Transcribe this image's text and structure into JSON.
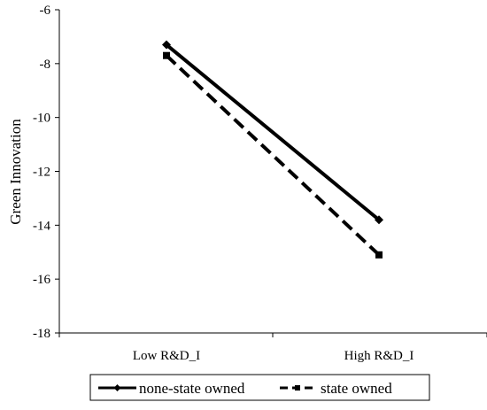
{
  "chart_data": {
    "type": "line",
    "title": "",
    "xlabel": "",
    "ylabel": "Green Innovation",
    "categories": [
      "Low R&D_I",
      "High R&D_I"
    ],
    "ylim": [
      -18,
      -6
    ],
    "yticks": [
      -6,
      -8,
      -10,
      -12,
      -14,
      -16,
      -18
    ],
    "grid": false,
    "legend_position": "bottom",
    "series": [
      {
        "name": "none-state owned",
        "values": [
          -7.3,
          -13.8
        ],
        "line_style": "solid",
        "marker": "diamond",
        "color": "#000000"
      },
      {
        "name": "state owned",
        "values": [
          -7.7,
          -15.1
        ],
        "line_style": "dashed",
        "marker": "square",
        "color": "#000000"
      }
    ]
  }
}
